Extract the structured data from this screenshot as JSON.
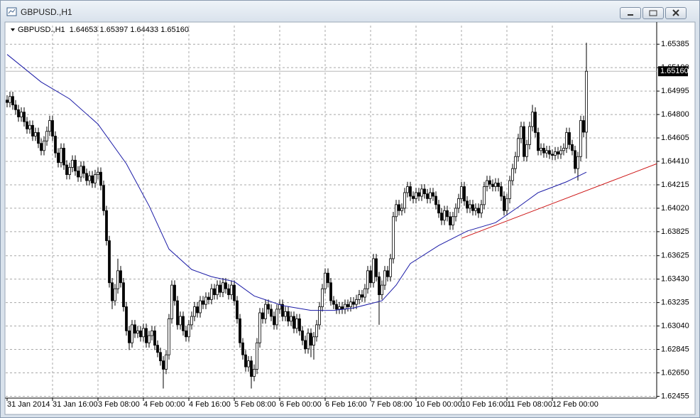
{
  "window_title": "GBPUSD.,H1",
  "chart_data": {
    "type": "candlestick",
    "header": "GBPUSD.,H1  1.64653 1.65397 1.64433 1.65160",
    "up_color": "#ffffff",
    "down_color": "#000000",
    "outline_color": "#000000",
    "grid": true,
    "categories": [
      "31 Jan 2014",
      null,
      null,
      null,
      null,
      null,
      null,
      null,
      null,
      null,
      null,
      null,
      null,
      null,
      null,
      null,
      "31 Jan 16:00",
      null,
      null,
      null,
      null,
      null,
      null,
      null,
      null,
      null,
      null,
      null,
      null,
      null,
      null,
      null,
      "3 Feb 08:00",
      null,
      null,
      null,
      null,
      null,
      null,
      null,
      null,
      null,
      null,
      null,
      null,
      null,
      null,
      null,
      "4 Feb 00:00",
      null,
      null,
      null,
      null,
      null,
      null,
      null,
      null,
      null,
      null,
      null,
      null,
      null,
      null,
      null,
      "4 Feb 16:00",
      null,
      null,
      null,
      null,
      null,
      null,
      null,
      null,
      null,
      null,
      null,
      null,
      null,
      null,
      null,
      "5 Feb 08:00",
      null,
      null,
      null,
      null,
      null,
      null,
      null,
      null,
      null,
      null,
      null,
      null,
      null,
      null,
      null,
      "6 Feb 00:00",
      null,
      null,
      null,
      null,
      null,
      null,
      null,
      null,
      null,
      null,
      null,
      null,
      null,
      null,
      null,
      "6 Feb 16:00",
      null,
      null,
      null,
      null,
      null,
      null,
      null,
      null,
      null,
      null,
      null,
      null,
      null,
      null,
      null,
      "7 Feb 08:00",
      null,
      null,
      null,
      null,
      null,
      null,
      null,
      null,
      null,
      null,
      null,
      null,
      null,
      null,
      null,
      "10 Feb 00:00",
      null,
      null,
      null,
      null,
      null,
      null,
      null,
      null,
      null,
      null,
      null,
      null,
      null,
      null,
      null,
      "10 Feb 16:00",
      null,
      null,
      null,
      null,
      null,
      null,
      null,
      null,
      null,
      null,
      null,
      null,
      null,
      null,
      null,
      "11 Feb 08:00",
      null,
      null,
      null,
      null,
      null,
      null,
      null,
      null,
      null,
      null,
      null,
      null,
      null,
      null,
      null,
      "12 Feb 00:00",
      null,
      null,
      null,
      null,
      null,
      null,
      null,
      null,
      null,
      null,
      null,
      null
    ],
    "open": [
      1.6492,
      1.649,
      1.6495,
      1.6488,
      1.6484,
      1.6478,
      1.6482,
      1.6474,
      1.6468,
      1.6471,
      1.6462,
      1.6465,
      1.6456,
      1.645,
      1.6458,
      1.6466,
      1.6475,
      1.6462,
      1.6448,
      1.644,
      1.6452,
      1.6438,
      1.643,
      1.6436,
      1.6442,
      1.6433,
      1.6428,
      1.6437,
      1.6431,
      1.6425,
      1.6429,
      1.6423,
      1.643,
      1.6432,
      1.6421,
      1.64,
      1.6375,
      1.634,
      1.6325,
      1.6335,
      1.635,
      1.634,
      1.632,
      1.63,
      1.629,
      1.6305,
      1.6298,
      1.63,
      1.6295,
      1.6302,
      1.629,
      1.6296,
      1.63,
      1.6288,
      1.6282,
      1.6275,
      1.6268,
      1.628,
      1.631,
      1.6338,
      1.6325,
      1.6305,
      1.6312,
      1.63,
      1.6295,
      1.6305,
      1.6312,
      1.632,
      1.6315,
      1.6325,
      1.6322,
      1.6328,
      1.6326,
      1.6335,
      1.633,
      1.6338,
      1.6332,
      1.634,
      1.6335,
      1.633,
      1.6338,
      1.6325,
      1.631,
      1.629,
      1.628,
      1.627,
      1.6275,
      1.6262,
      1.6268,
      1.629,
      1.6315,
      1.631,
      1.6322,
      1.6318,
      1.6312,
      1.6305,
      1.6318,
      1.6322,
      1.6312,
      1.6316,
      1.6308,
      1.6312,
      1.6302,
      1.631,
      1.63,
      1.6292,
      1.6285,
      1.6298,
      1.6288,
      1.6295,
      1.6305,
      1.632,
      1.6335,
      1.6348,
      1.634,
      1.6325,
      1.6322,
      1.6318,
      1.632,
      1.6318,
      1.6322,
      1.632,
      1.6324,
      1.6322,
      1.6326,
      1.633,
      1.6328,
      1.6335,
      1.635,
      1.634,
      1.636,
      1.6345,
      1.633,
      1.6338,
      1.635,
      1.6345,
      1.636,
      1.6395,
      1.6405,
      1.64,
      1.6402,
      1.6415,
      1.642,
      1.6412,
      1.641,
      1.6415,
      1.6412,
      1.6418,
      1.6414,
      1.641,
      1.6415,
      1.6412,
      1.6405,
      1.6398,
      1.6392,
      1.64,
      1.6395,
      1.6388,
      1.6395,
      1.6402,
      1.641,
      1.642,
      1.6408,
      1.6402,
      1.6405,
      1.64,
      1.6402,
      1.6398,
      1.6405,
      1.642,
      1.6425,
      1.6422,
      1.642,
      1.6423,
      1.642,
      1.6412,
      1.64,
      1.641,
      1.6425,
      1.6435,
      1.6445,
      1.646,
      1.647,
      1.6445,
      1.6455,
      1.647,
      1.6482,
      1.6465,
      1.645,
      1.6452,
      1.6448,
      1.645,
      1.6447,
      1.6446,
      1.6449,
      1.6447,
      1.645,
      1.6452,
      1.6465,
      1.6455,
      1.645,
      1.6435,
      1.6445,
      1.6475,
      1.64653
    ],
    "high": [
      1.6496,
      1.6499,
      1.6499,
      1.6492,
      1.6488,
      1.6486,
      1.6486,
      1.6478,
      1.6475,
      1.6475,
      1.6469,
      1.6469,
      1.646,
      1.6462,
      1.647,
      1.6479,
      1.6479,
      1.6466,
      1.6452,
      1.6456,
      1.6456,
      1.6442,
      1.644,
      1.6446,
      1.6446,
      1.6437,
      1.6441,
      1.6441,
      1.6435,
      1.6433,
      1.6433,
      1.6434,
      1.6436,
      1.6436,
      1.6425,
      1.6404,
      1.6379,
      1.6344,
      1.6339,
      1.636,
      1.6354,
      1.6344,
      1.6324,
      1.6304,
      1.6309,
      1.6309,
      1.6304,
      1.6304,
      1.6306,
      1.6306,
      1.63,
      1.6304,
      1.6304,
      1.6292,
      1.6286,
      1.6279,
      1.6284,
      1.6314,
      1.6342,
      1.6342,
      1.6329,
      1.6316,
      1.6316,
      1.6304,
      1.6309,
      1.6316,
      1.6324,
      1.6324,
      1.6329,
      1.6329,
      1.6332,
      1.6332,
      1.6339,
      1.6339,
      1.6342,
      1.6342,
      1.6344,
      1.6344,
      1.6339,
      1.6342,
      1.6342,
      1.6329,
      1.6314,
      1.6294,
      1.6284,
      1.6279,
      1.6279,
      1.6272,
      1.6294,
      1.6319,
      1.6319,
      1.6326,
      1.6326,
      1.6322,
      1.6316,
      1.6322,
      1.6326,
      1.6326,
      1.632,
      1.632,
      1.6316,
      1.6316,
      1.6314,
      1.6314,
      1.6304,
      1.6296,
      1.6302,
      1.6302,
      1.6299,
      1.6309,
      1.6324,
      1.6339,
      1.6352,
      1.6352,
      1.6344,
      1.6329,
      1.6326,
      1.6324,
      1.6324,
      1.6326,
      1.6326,
      1.6328,
      1.6328,
      1.633,
      1.6334,
      1.6334,
      1.6339,
      1.6354,
      1.6354,
      1.6364,
      1.6364,
      1.6349,
      1.6342,
      1.6354,
      1.6354,
      1.6364,
      1.6399,
      1.6409,
      1.6409,
      1.6406,
      1.6419,
      1.6424,
      1.6424,
      1.6416,
      1.6419,
      1.6419,
      1.6422,
      1.6422,
      1.6418,
      1.6419,
      1.6419,
      1.6416,
      1.6409,
      1.6402,
      1.6404,
      1.6404,
      1.6399,
      1.6399,
      1.6406,
      1.6414,
      1.6424,
      1.6424,
      1.6412,
      1.6409,
      1.6409,
      1.6406,
      1.6406,
      1.6409,
      1.6424,
      1.6429,
      1.6429,
      1.6426,
      1.6427,
      1.6427,
      1.6424,
      1.6416,
      1.6414,
      1.6429,
      1.6439,
      1.6449,
      1.6464,
      1.6474,
      1.6474,
      1.6459,
      1.6474,
      1.6488,
      1.6486,
      1.6469,
      1.6456,
      1.6456,
      1.6454,
      1.6454,
      1.6451,
      1.6453,
      1.6453,
      1.6454,
      1.6456,
      1.6469,
      1.6469,
      1.6459,
      1.6454,
      1.6449,
      1.6479,
      1.6479,
      1.65397
    ],
    "low": [
      1.6486,
      1.6486,
      1.6484,
      1.648,
      1.6474,
      1.6474,
      1.647,
      1.6464,
      1.6464,
      1.6458,
      1.6458,
      1.6452,
      1.6446,
      1.6446,
      1.6454,
      1.6462,
      1.6458,
      1.6444,
      1.6436,
      1.6436,
      1.6434,
      1.6426,
      1.6426,
      1.6432,
      1.6429,
      1.6424,
      1.6424,
      1.6427,
      1.6421,
      1.6421,
      1.6419,
      1.6419,
      1.6426,
      1.6417,
      1.6396,
      1.6371,
      1.6336,
      1.6318,
      1.6321,
      1.6331,
      1.6336,
      1.6316,
      1.6296,
      1.6284,
      1.6286,
      1.6294,
      1.6294,
      1.6291,
      1.6291,
      1.6286,
      1.6286,
      1.6292,
      1.6284,
      1.6278,
      1.6271,
      1.6252,
      1.6264,
      1.6276,
      1.6306,
      1.6321,
      1.6301,
      1.6301,
      1.6296,
      1.6291,
      1.6291,
      1.6301,
      1.6308,
      1.6311,
      1.6311,
      1.6318,
      1.6318,
      1.6322,
      1.6322,
      1.6326,
      1.6326,
      1.6328,
      1.6328,
      1.6331,
      1.6326,
      1.6326,
      1.6321,
      1.6306,
      1.6286,
      1.6276,
      1.6266,
      1.6266,
      1.6252,
      1.6258,
      1.6264,
      1.6286,
      1.6306,
      1.6306,
      1.6314,
      1.6308,
      1.6301,
      1.6301,
      1.6314,
      1.6308,
      1.6308,
      1.6304,
      1.6304,
      1.6298,
      1.6298,
      1.6296,
      1.6288,
      1.6281,
      1.6281,
      1.6278,
      1.6276,
      1.6291,
      1.6301,
      1.6316,
      1.6331,
      1.6336,
      1.6321,
      1.6318,
      1.6314,
      1.6314,
      1.6314,
      1.6314,
      1.6316,
      1.6316,
      1.6318,
      1.6318,
      1.6322,
      1.6324,
      1.6324,
      1.6331,
      1.6336,
      1.6336,
      1.6341,
      1.6305,
      1.6326,
      1.6334,
      1.6341,
      1.6341,
      1.6356,
      1.6391,
      1.6396,
      1.6396,
      1.6398,
      1.6411,
      1.6408,
      1.6406,
      1.6406,
      1.6408,
      1.6408,
      1.641,
      1.6406,
      1.6406,
      1.6408,
      1.6401,
      1.6394,
      1.6388,
      1.6388,
      1.6391,
      1.6384,
      1.6384,
      1.6391,
      1.6398,
      1.6406,
      1.6404,
      1.6398,
      1.6398,
      1.6396,
      1.6396,
      1.6394,
      1.6394,
      1.6401,
      1.6416,
      1.6418,
      1.6416,
      1.6416,
      1.6416,
      1.6408,
      1.6396,
      1.6396,
      1.6406,
      1.6421,
      1.6431,
      1.6441,
      1.6456,
      1.6441,
      1.6441,
      1.6451,
      1.6466,
      1.6461,
      1.6446,
      1.6446,
      1.6444,
      1.6444,
      1.6443,
      1.6442,
      1.6442,
      1.6443,
      1.6443,
      1.6446,
      1.6448,
      1.6451,
      1.6446,
      1.6431,
      1.6425,
      1.6441,
      1.6461,
      1.64433
    ],
    "close": [
      1.649,
      1.6495,
      1.6488,
      1.6484,
      1.6478,
      1.6482,
      1.6474,
      1.6468,
      1.6471,
      1.6462,
      1.6465,
      1.6456,
      1.645,
      1.6458,
      1.6466,
      1.6475,
      1.6462,
      1.6448,
      1.644,
      1.6452,
      1.6438,
      1.643,
      1.6436,
      1.6442,
      1.6433,
      1.6428,
      1.6437,
      1.6431,
      1.6425,
      1.6429,
      1.6423,
      1.643,
      1.6432,
      1.6421,
      1.64,
      1.6375,
      1.634,
      1.6325,
      1.6335,
      1.635,
      1.634,
      1.632,
      1.63,
      1.629,
      1.6305,
      1.6298,
      1.63,
      1.6295,
      1.6302,
      1.629,
      1.6296,
      1.63,
      1.6288,
      1.6282,
      1.6275,
      1.6268,
      1.628,
      1.631,
      1.6338,
      1.6325,
      1.6305,
      1.6312,
      1.63,
      1.6295,
      1.6305,
      1.6312,
      1.632,
      1.6315,
      1.6325,
      1.6322,
      1.6328,
      1.6326,
      1.6335,
      1.633,
      1.6338,
      1.6332,
      1.634,
      1.6335,
      1.633,
      1.6338,
      1.6325,
      1.631,
      1.629,
      1.628,
      1.627,
      1.6275,
      1.6262,
      1.6268,
      1.629,
      1.6315,
      1.631,
      1.6322,
      1.6318,
      1.6312,
      1.6305,
      1.6318,
      1.6322,
      1.6312,
      1.6316,
      1.6308,
      1.6312,
      1.6302,
      1.631,
      1.63,
      1.6292,
      1.6285,
      1.6298,
      1.6288,
      1.6295,
      1.6305,
      1.632,
      1.6335,
      1.6348,
      1.634,
      1.6325,
      1.6322,
      1.6318,
      1.632,
      1.6318,
      1.6322,
      1.632,
      1.6324,
      1.6322,
      1.6326,
      1.633,
      1.6328,
      1.6335,
      1.635,
      1.634,
      1.636,
      1.6345,
      1.633,
      1.6338,
      1.635,
      1.6345,
      1.636,
      1.6395,
      1.6405,
      1.64,
      1.6402,
      1.6415,
      1.642,
      1.6412,
      1.641,
      1.6415,
      1.6412,
      1.6418,
      1.6414,
      1.641,
      1.6415,
      1.6412,
      1.6405,
      1.6398,
      1.6392,
      1.64,
      1.6395,
      1.6388,
      1.6395,
      1.6402,
      1.641,
      1.642,
      1.6408,
      1.6402,
      1.6405,
      1.64,
      1.6402,
      1.6398,
      1.6405,
      1.642,
      1.6425,
      1.6422,
      1.642,
      1.6423,
      1.642,
      1.6412,
      1.64,
      1.641,
      1.6425,
      1.6435,
      1.6445,
      1.646,
      1.647,
      1.6445,
      1.6455,
      1.647,
      1.6482,
      1.6465,
      1.645,
      1.6452,
      1.6448,
      1.645,
      1.6447,
      1.6446,
      1.6449,
      1.6447,
      1.645,
      1.6452,
      1.6465,
      1.6455,
      1.645,
      1.6435,
      1.6445,
      1.6475,
      1.64653,
      1.6516
    ],
    "moving_average": {
      "color": "#1a1aa6",
      "x": [
        0,
        12,
        22,
        32,
        42,
        50,
        57,
        65,
        72,
        80,
        87,
        97,
        107,
        115,
        122,
        132,
        137,
        142,
        152,
        162,
        172,
        180,
        187,
        197,
        204
      ],
      "values": [
        1.653,
        1.6507,
        1.6493,
        1.6472,
        1.6439,
        1.6404,
        1.6368,
        1.6351,
        1.6345,
        1.6341,
        1.6329,
        1.6321,
        1.6317,
        1.6317,
        1.6319,
        1.6325,
        1.6338,
        1.6356,
        1.6371,
        1.6383,
        1.639,
        1.6403,
        1.6415,
        1.6424,
        1.6432
      ]
    },
    "trendline": {
      "color": "#cc1111",
      "x": [
        160,
        228.75
      ],
      "values": [
        1.6377,
        1.6439
      ]
    },
    "current_price": {
      "value": 1.6516,
      "label": "1.65160"
    },
    "ylim": [
      1.6244,
      1.6554
    ],
    "yticks": [
      1.65385,
      {
        "value": 1.6519,
        "label": "1.65190"
      },
      1.64995,
      {
        "value": 1.648,
        "label": "1.64800"
      },
      1.64605,
      {
        "value": 1.6441,
        "label": "1.64410"
      },
      1.64215,
      {
        "value": 1.6402,
        "label": "1.64020"
      },
      1.63825,
      1.63625,
      {
        "value": 1.6343,
        "label": "1.63430"
      },
      1.63235,
      {
        "value": 1.6304,
        "label": "1.63040"
      },
      1.62845,
      {
        "value": 1.6265,
        "label": "1.62650"
      },
      1.62455
    ]
  }
}
